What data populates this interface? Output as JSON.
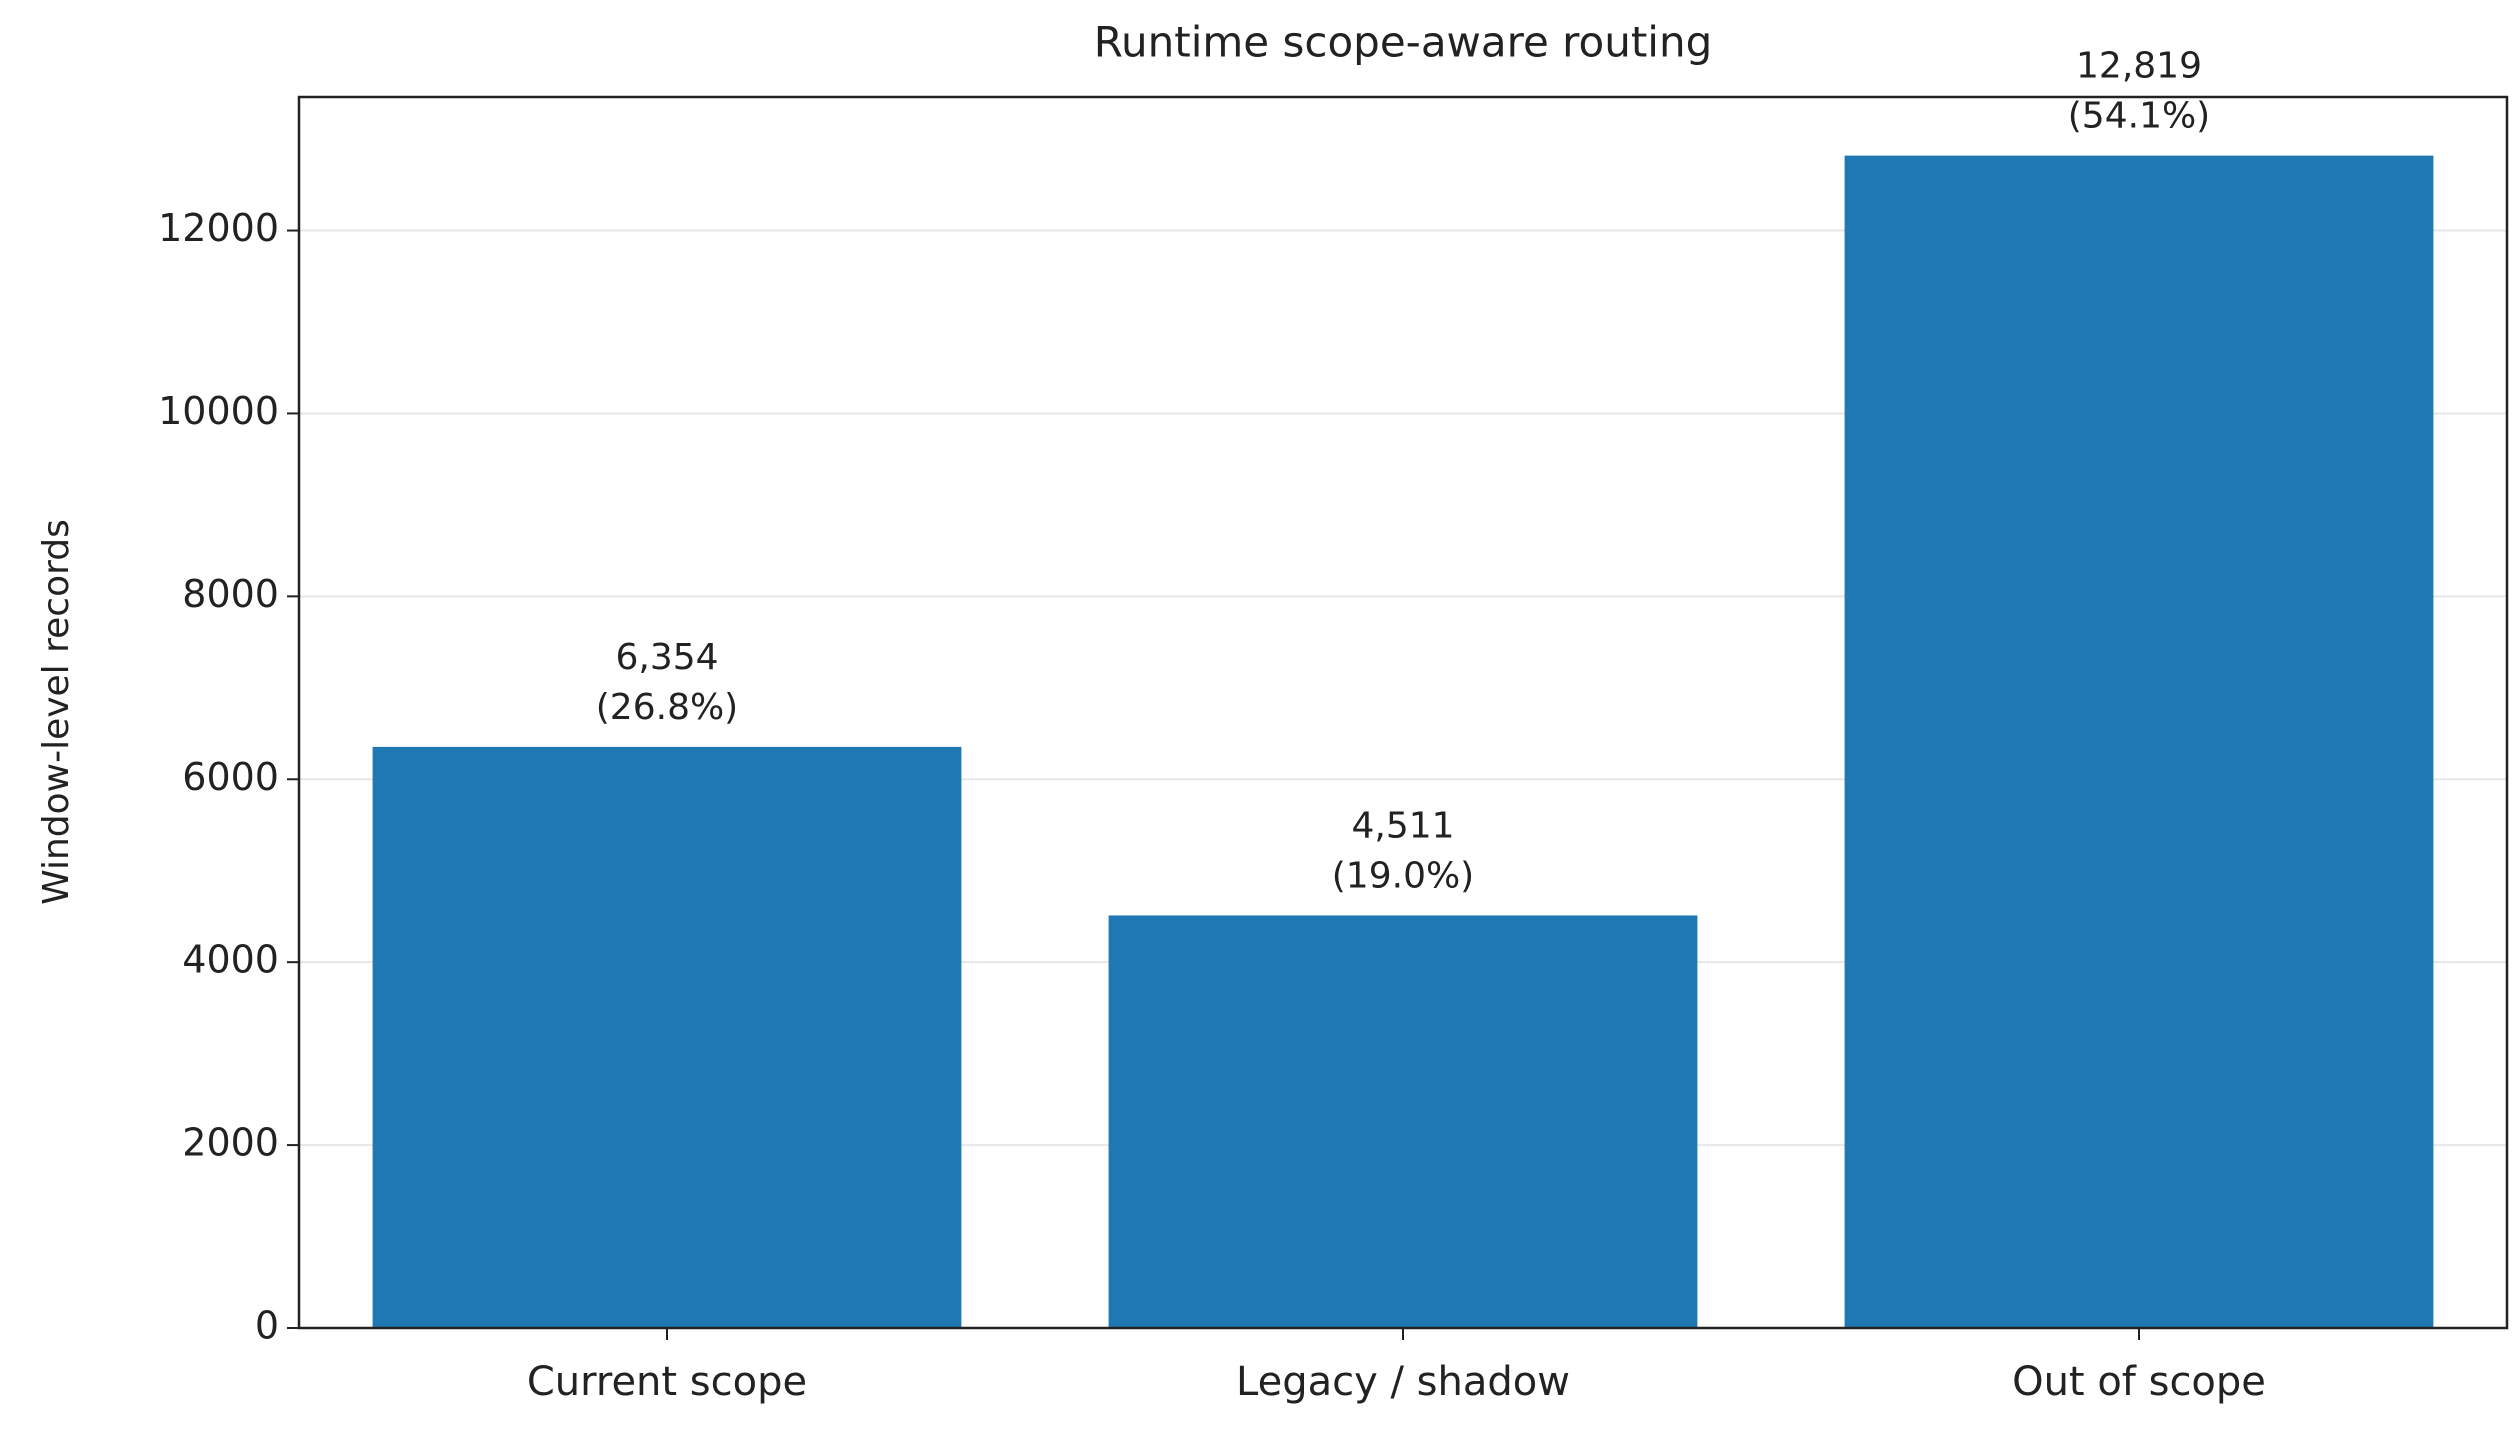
{
  "chart_data": {
    "type": "bar",
    "title": "Runtime scope-aware routing",
    "y_label": "Window-level records",
    "categories": [
      "Current scope",
      "Legacy / shadow",
      "Out of scope"
    ],
    "values": [
      6354,
      4511,
      12819
    ],
    "value_labels": [
      "6,354",
      "4,511",
      "12,819"
    ],
    "share_labels": [
      "(26.8%)",
      "(19.0%)",
      "(54.1%)"
    ],
    "color": "#1f77b4",
    "ylim": [
      0,
      13460
    ],
    "yticks": [
      0,
      2000,
      4000,
      6000,
      8000,
      10000,
      12000
    ],
    "grid": true
  }
}
